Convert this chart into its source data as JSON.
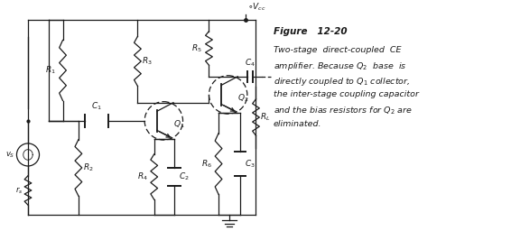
{
  "figure_title": "Figure   12-20",
  "caption_line1": "Two-stage  direct-coupled  CE",
  "caption_line2": "amplifier. Because $Q_2$  base  is",
  "caption_line3": "directly coupled to $Q_1$ collector,",
  "caption_line4": "the inter-stage coupling capacitor",
  "caption_line5": "and the bias resistors for $Q_2$ are",
  "caption_line6": "eliminated.",
  "bg_color": "#ffffff",
  "lc": "#1a1a1a"
}
